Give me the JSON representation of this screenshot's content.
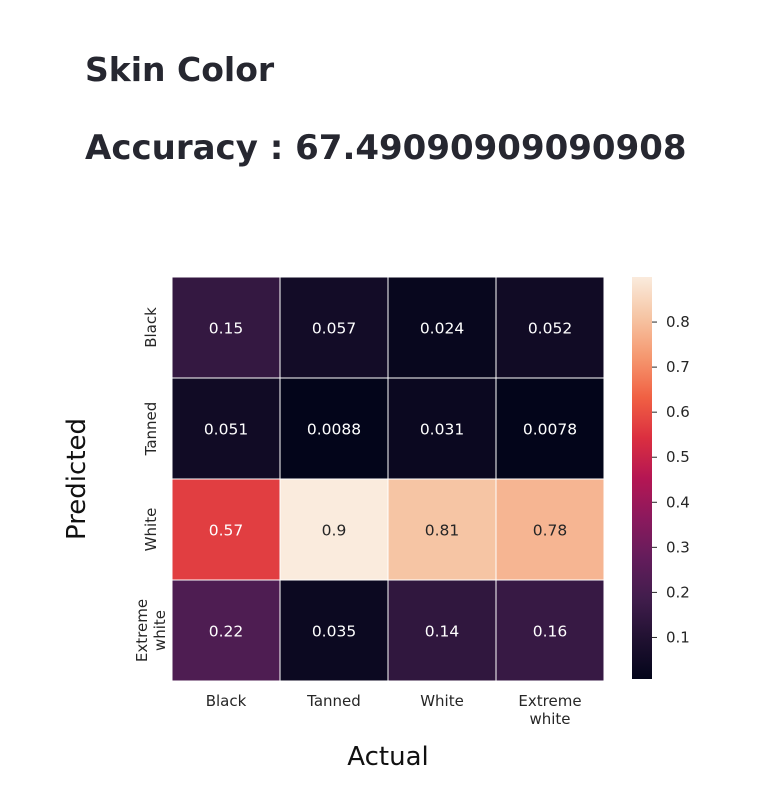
{
  "header": {
    "title": "Skin Color",
    "accuracy_text": "Accuracy : 67.49090909090908"
  },
  "chart_data": {
    "type": "heatmap",
    "xlabel": "Actual",
    "ylabel": "Predicted",
    "x_categories": [
      "Black",
      "Tanned",
      "White",
      "Extreme white"
    ],
    "y_categories": [
      "Black",
      "Tanned",
      "White",
      "Extreme white"
    ],
    "values": [
      [
        0.15,
        0.057,
        0.024,
        0.052
      ],
      [
        0.051,
        0.0088,
        0.031,
        0.0078
      ],
      [
        0.57,
        0.9,
        0.81,
        0.78
      ],
      [
        0.22,
        0.035,
        0.14,
        0.16
      ]
    ],
    "value_labels": [
      [
        "0.15",
        "0.057",
        "0.024",
        "0.052"
      ],
      [
        "0.051",
        "0.0088",
        "0.031",
        "0.0078"
      ],
      [
        "0.57",
        "0.9",
        "0.81",
        "0.78"
      ],
      [
        "0.22",
        "0.035",
        "0.14",
        "0.16"
      ]
    ],
    "colorbar": {
      "range": [
        0.0078,
        0.9
      ],
      "ticks": [
        0.1,
        0.2,
        0.3,
        0.4,
        0.5,
        0.6,
        0.7,
        0.8
      ],
      "tick_labels": [
        "0.1",
        "0.2",
        "0.3",
        "0.4",
        "0.5",
        "0.6",
        "0.7",
        "0.8"
      ],
      "colormap": "rocket"
    }
  }
}
